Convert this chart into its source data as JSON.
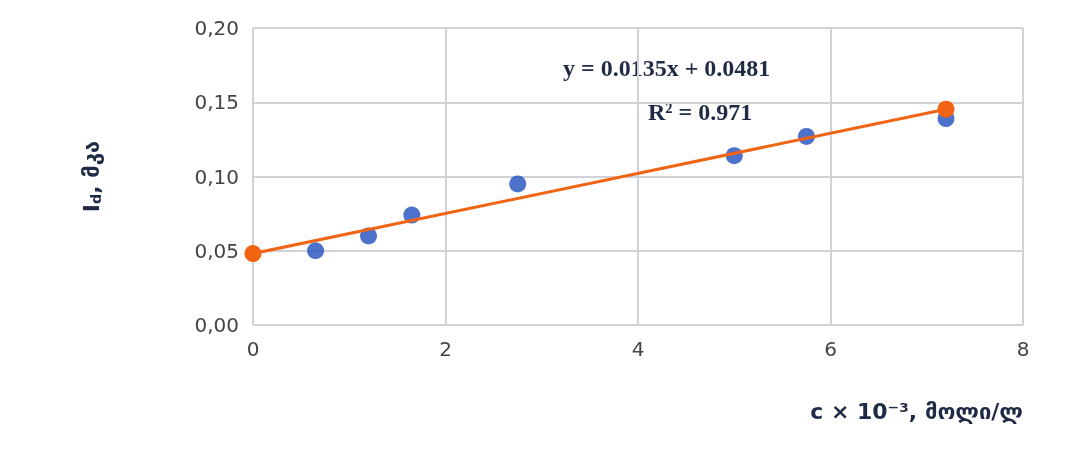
{
  "chart_data": {
    "type": "scatter",
    "xlabel": "c × 10⁻³, მოლი/ლ",
    "ylabel": "I$_{d}$, მკა",
    "series": [
      {
        "color": "#1f4fbf",
        "x": [
          0.65,
          1.2,
          1.65,
          2.75,
          5,
          5.75,
          7.2
        ],
        "values": [
          0.05,
          0.06,
          0.074,
          0.095,
          0.114,
          0.127,
          0.139
        ]
      },
      {
        "type": "line",
        "color": "#f06414",
        "x": [
          0,
          7.2
        ],
        "values": [
          0.0481,
          0.1453
        ]
      }
    ],
    "annotations": [
      "y = 0.0135x + 0.0481",
      "R² = 0.971"
    ],
    "xlim": [
      0,
      8
    ],
    "xticks": [
      0,
      2,
      4,
      6,
      8
    ],
    "ylim": [
      0,
      0.2
    ],
    "yticks": [
      {
        "value": 0,
        "label": "0,00"
      },
      {
        "value": 0.05,
        "label": "0,05"
      },
      {
        "value": 0.1,
        "label": "0,10"
      },
      {
        "value": 0.15,
        "label": "0,15"
      },
      {
        "value": 0.2,
        "label": "0,20"
      }
    ],
    "grid": true,
    "marker": "circle"
  }
}
